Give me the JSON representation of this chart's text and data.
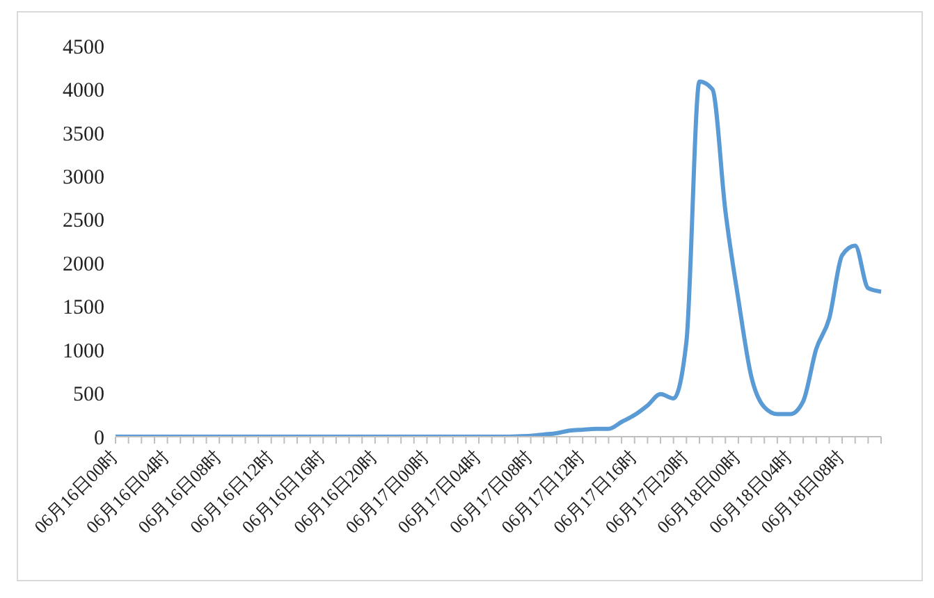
{
  "chart_data": {
    "type": "line",
    "categories": [
      "06月16日00时",
      null,
      null,
      null,
      "06月16日04时",
      null,
      null,
      null,
      "06月16日08时",
      null,
      null,
      null,
      "06月16日12时",
      null,
      null,
      null,
      "06月16日16时",
      null,
      null,
      null,
      "06月16日20时",
      null,
      null,
      null,
      "06月17日00时",
      null,
      null,
      null,
      "06月17日04时",
      null,
      null,
      null,
      "06月17日08时",
      null,
      null,
      null,
      "06月17日12时",
      null,
      null,
      null,
      "06月17日16时",
      null,
      null,
      null,
      "06月17日20时",
      null,
      null,
      null,
      "06月18日00时",
      null,
      null,
      null,
      "06月18日04时",
      null,
      null,
      null,
      "06月18日08时",
      null,
      null,
      null
    ],
    "series": [
      {
        "color": "#5b9bd5",
        "values": [
          0,
          0,
          0,
          0,
          0,
          0,
          0,
          0,
          0,
          0,
          0,
          0,
          0,
          0,
          0,
          0,
          0,
          0,
          0,
          0,
          0,
          0,
          0,
          0,
          0,
          0,
          0,
          0,
          0,
          0,
          0,
          5,
          10,
          25,
          40,
          70,
          80,
          90,
          90,
          170,
          250,
          360,
          490,
          440,
          1100,
          4090,
          4000,
          2600,
          1580,
          690,
          340,
          260,
          260,
          410,
          1010,
          1360,
          2090,
          2200,
          1710,
          1670
        ]
      }
    ],
    "ylim": [
      0,
      4500
    ],
    "yticks": [
      0,
      500,
      1000,
      1500,
      2000,
      2500,
      3000,
      3500,
      4000,
      4500
    ],
    "grid": false,
    "legend": false,
    "marker": "none",
    "line_style": "solid"
  }
}
